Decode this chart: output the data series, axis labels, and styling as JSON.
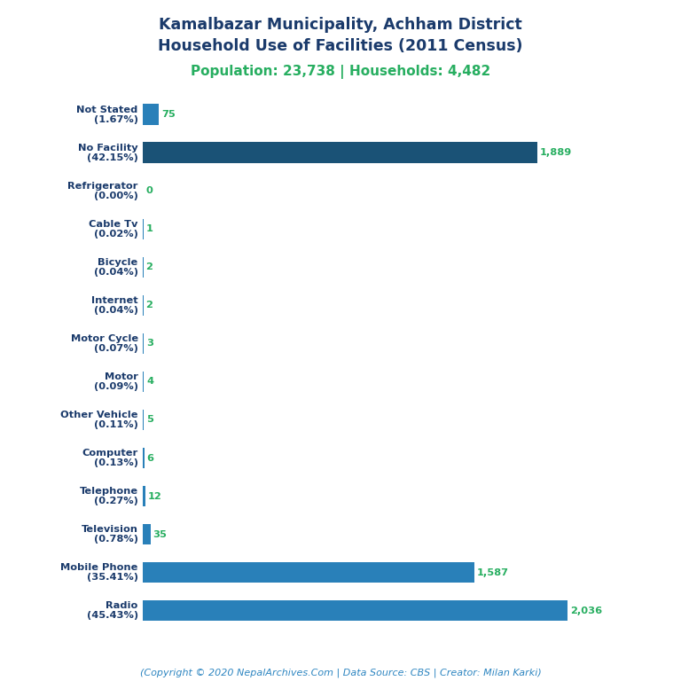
{
  "title_line1": "Kamalbazar Municipality, Achham District",
  "title_line2": "Household Use of Facilities (2011 Census)",
  "subtitle": "Population: 23,738 | Households: 4,482",
  "categories": [
    "Not Stated\n(1.67%)",
    "No Facility\n(42.15%)",
    "Refrigerator\n(0.00%)",
    "Cable Tv\n(0.02%)",
    "Bicycle\n(0.04%)",
    "Internet\n(0.04%)",
    "Motor Cycle\n(0.07%)",
    "Motor\n(0.09%)",
    "Other Vehicle\n(0.11%)",
    "Computer\n(0.13%)",
    "Telephone\n(0.27%)",
    "Television\n(0.78%)",
    "Mobile Phone\n(35.41%)",
    "Radio\n(45.43%)"
  ],
  "values": [
    75,
    1889,
    0,
    1,
    2,
    2,
    3,
    4,
    5,
    6,
    12,
    35,
    1587,
    2036
  ],
  "bar_colors": [
    "#2980b9",
    "#1a5276",
    "#2980b9",
    "#2980b9",
    "#2980b9",
    "#2980b9",
    "#2980b9",
    "#2980b9",
    "#2980b9",
    "#2980b9",
    "#2980b9",
    "#2980b9",
    "#2980b9",
    "#2980b9"
  ],
  "title_color": "#1a3a6b",
  "subtitle_color": "#27ae60",
  "value_color": "#27ae60",
  "footer_color": "#2e86c1",
  "footer_text": "(Copyright © 2020 NepalArchives.Com | Data Source: CBS | Creator: Milan Karki)",
  "figsize": [
    7.68,
    7.68
  ],
  "dpi": 100
}
